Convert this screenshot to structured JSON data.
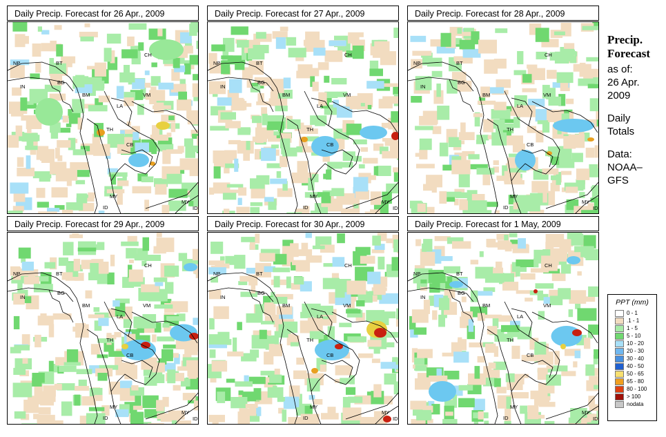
{
  "panels": [
    {
      "title": "Daily Precip. Forecast for  26 Apr., 2009",
      "seed": 11,
      "blobs": [
        [
          230,
          40,
          50,
          30,
          "#98e898"
        ],
        [
          60,
          130,
          40,
          40,
          "#98e898"
        ],
        [
          190,
          200,
          30,
          20,
          "#6cc8f0"
        ],
        [
          135,
          160,
          12,
          10,
          "#e8a020"
        ],
        [
          225,
          150,
          20,
          12,
          "#e8d040"
        ],
        [
          283,
          160,
          10,
          12,
          "#c82010"
        ],
        [
          210,
          205,
          8,
          6,
          "#e8a020"
        ]
      ]
    },
    {
      "title": "Daily Precip. Forecast for  27 Apr., 2009",
      "seed": 23,
      "blobs": [
        [
          170,
          180,
          40,
          30,
          "#6cc8f0"
        ],
        [
          240,
          160,
          40,
          20,
          "#6cc8f0"
        ],
        [
          272,
          165,
          12,
          12,
          "#c82010"
        ],
        [
          140,
          170,
          10,
          8,
          "#e8a020"
        ]
      ]
    },
    {
      "title": "Daily Precip. Forecast for  28 Apr., 2009",
      "seed": 37,
      "blobs": [
        [
          170,
          200,
          30,
          30,
          "#6cc8f0"
        ],
        [
          240,
          150,
          60,
          20,
          "#6cc8f0"
        ],
        [
          265,
          170,
          10,
          6,
          "#e8a020"
        ],
        [
          205,
          190,
          8,
          6,
          "#e8a020"
        ]
      ]
    },
    {
      "title": "Daily Precip. Forecast for  29 Apr., 2009",
      "seed": 41,
      "blobs": [
        [
          190,
          170,
          50,
          30,
          "#6cc8f0"
        ],
        [
          255,
          145,
          40,
          25,
          "#6cc8f0"
        ],
        [
          200,
          163,
          14,
          10,
          "#c82010"
        ],
        [
          270,
          150,
          14,
          10,
          "#c82010"
        ],
        [
          170,
          165,
          10,
          8,
          "#e8d040"
        ],
        [
          265,
          50,
          20,
          12,
          "#6cc8f0"
        ]
      ]
    },
    {
      "title": "Daily Precip. Forecast for  30 Apr., 2009",
      "seed": 53,
      "blobs": [
        [
          180,
          170,
          50,
          30,
          "#6cc8f0"
        ],
        [
          245,
          140,
          30,
          25,
          "#e8d040"
        ],
        [
          250,
          145,
          18,
          14,
          "#c82010"
        ],
        [
          190,
          165,
          12,
          8,
          "#c82010"
        ],
        [
          155,
          200,
          10,
          8,
          "#e8a020"
        ],
        [
          260,
          270,
          12,
          10,
          "#c82010"
        ]
      ]
    },
    {
      "title": "Daily Precip. Forecast for  1 May, 2009",
      "seed": 67,
      "blobs": [
        [
          230,
          150,
          45,
          30,
          "#6cc8f0"
        ],
        [
          245,
          145,
          14,
          10,
          "#c82010"
        ],
        [
          225,
          165,
          8,
          8,
          "#e8d040"
        ],
        [
          240,
          40,
          20,
          12,
          "#6cc8f0"
        ],
        [
          70,
          75,
          20,
          10,
          "#6cc8f0"
        ],
        [
          50,
          230,
          40,
          30,
          "#6cc8f0"
        ],
        [
          185,
          85,
          6,
          6,
          "#c82010"
        ]
      ]
    }
  ],
  "labels": {
    "np": "NP",
    "bt": "BT",
    "bg": "BG",
    "in": "IN",
    "bm": "BM",
    "ch": "CH",
    "vm": "VM",
    "la": "LA",
    "th": "TH",
    "cb": "CB",
    "my": "MY",
    "id": "ID"
  },
  "side": {
    "title_line1": "Precip.",
    "title_line2": "Forecast",
    "asof": "as of:",
    "date1": "26 Apr.",
    "date2": "2009",
    "totals1": "Daily",
    "totals2": "Totals",
    "data_label": "Data:",
    "source1": "NOAA–",
    "source2": "GFS"
  },
  "legend": {
    "title": "PPT (mm)",
    "items": [
      {
        "label": "0 - 1",
        "color": "#ffffff"
      },
      {
        "label": ".1 - 1",
        "color": "#f2dcc0"
      },
      {
        "label": "1 - 5",
        "color": "#a8ecA8"
      },
      {
        "label": "5 - 10",
        "color": "#70d870"
      },
      {
        "label": "10 - 20",
        "color": "#a8e0f8"
      },
      {
        "label": "20 - 30",
        "color": "#70b8f0"
      },
      {
        "label": "30 - 40",
        "color": "#4890e0"
      },
      {
        "label": "40 - 50",
        "color": "#2060d0"
      },
      {
        "label": "50 - 65",
        "color": "#f8e070"
      },
      {
        "label": "65 - 80",
        "color": "#f0a020"
      },
      {
        "label": "80 - 100",
        "color": "#e04010"
      },
      {
        "label": "> 100",
        "color": "#a01008"
      },
      {
        "label": "nodata",
        "color": "#c8c8c8"
      }
    ]
  }
}
